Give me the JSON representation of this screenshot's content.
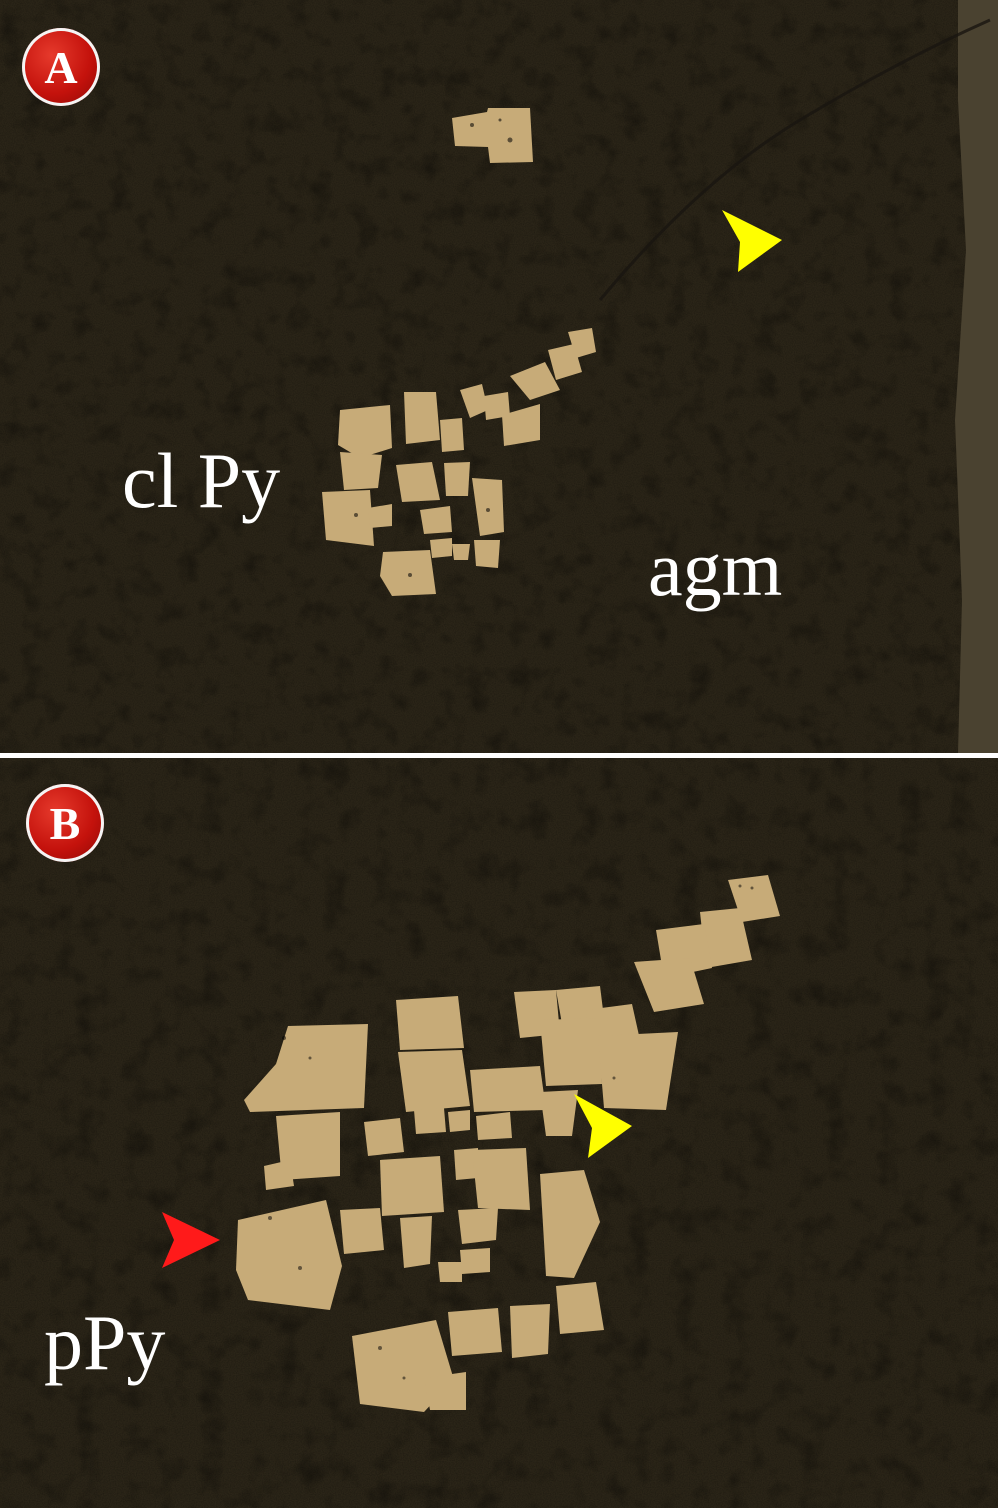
{
  "panels": [
    {
      "id": "A",
      "badge": "A",
      "labels": {
        "cluster": "cl Py",
        "matrix": "agm"
      },
      "arrow_color": "#ffff00"
    },
    {
      "id": "B",
      "badge": "B",
      "labels": {
        "pyrite": "pPy"
      },
      "arrow_colors": [
        "#ffff00",
        "#ff1a1a"
      ]
    }
  ],
  "colors": {
    "matrix": "#2b2518",
    "grain": "#c7ab78",
    "divider": "#ffffff"
  }
}
